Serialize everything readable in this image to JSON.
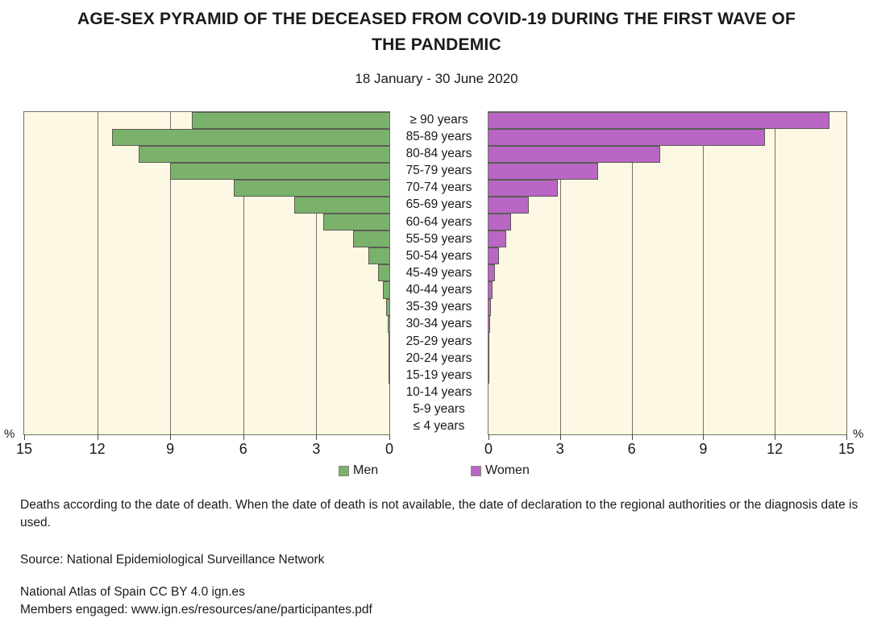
{
  "title": {
    "line1": "AGE-SEX PYRAMID OF THE DECEASED FROM COVID-19 DURING THE FIRST WAVE OF",
    "line2": "THE PANDEMIC"
  },
  "subtitle": "18 January - 30 June 2020",
  "chart_data": {
    "type": "bar",
    "subtype": "population-pyramid",
    "title": "AGE-SEX PYRAMID OF THE DECEASED FROM COVID-19 DURING THE FIRST WAVE OF THE PANDEMIC",
    "period": "18 January - 30 June 2020",
    "unit": "%",
    "xlim": [
      0,
      15
    ],
    "axis_ticks": [
      0,
      3,
      6,
      9,
      12,
      15
    ],
    "gridline_values": [
      3,
      6,
      9,
      12
    ],
    "grid": true,
    "plot_background": "#fdf8e3",
    "categories": [
      "≥ 90 years",
      "85-89 years",
      "80-84 years",
      "75-79 years",
      "70-74 years",
      "65-69 years",
      "60-64 years",
      "55-59 years",
      "50-54 years",
      "45-49 years",
      "40-44 years",
      "35-39 years",
      "30-34 years",
      "25-29 years",
      "20-24 years",
      "15-19 years",
      "10-14 years",
      "5-9 years",
      "≤ 4 years"
    ],
    "series": [
      {
        "name": "Men",
        "side": "left",
        "color": "#7ab26c",
        "values": [
          8.1,
          11.4,
          10.3,
          9.0,
          6.4,
          3.9,
          2.7,
          1.5,
          0.85,
          0.45,
          0.25,
          0.13,
          0.07,
          0.05,
          0.01,
          0.01,
          0,
          0,
          0
        ]
      },
      {
        "name": "Women",
        "side": "right",
        "color": "#b966c4",
        "values": [
          14.3,
          11.6,
          7.2,
          4.6,
          2.9,
          1.7,
          0.95,
          0.75,
          0.45,
          0.26,
          0.17,
          0.09,
          0.06,
          0.05,
          0.01,
          0.01,
          0,
          0,
          0
        ]
      }
    ],
    "legend_position": "bottom"
  },
  "axis": {
    "percent_label": "%"
  },
  "legend": {
    "men": "Men",
    "women": "Women"
  },
  "footer": {
    "note": "Deaths according to the date of death. When the date of death is not available, the date of declaration to the regional authorities or the diagnosis date is used.",
    "source": "Source: National Epidemiological Surveillance Network",
    "license": "National Atlas of Spain CC BY 4.0 ign.es",
    "members": "Members engaged: www.ign.es/resources/ane/participantes.pdf"
  }
}
